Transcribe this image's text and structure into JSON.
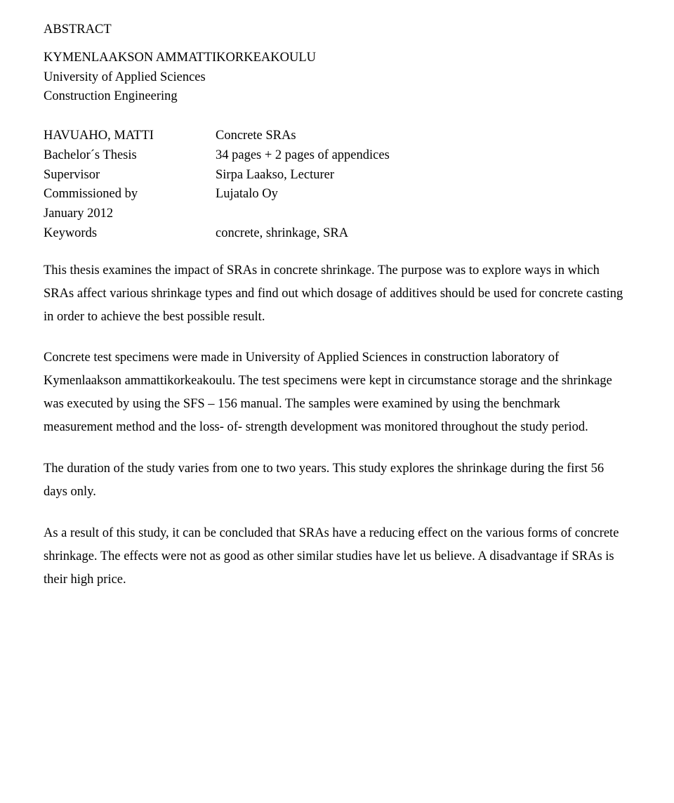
{
  "heading": "ABSTRACT",
  "institution": {
    "line1": "KYMENLAAKSON AMMATTIKORKEAKOULU",
    "line2": "University of Applied Sciences",
    "line3": "Construction Engineering"
  },
  "meta": {
    "author": {
      "label": "HAVUAHO, MATTI",
      "value": "Concrete SRAs"
    },
    "thesis": {
      "label": "Bachelor´s Thesis",
      "value": "34 pages + 2 pages of appendices"
    },
    "supervisor": {
      "label": "Supervisor",
      "value": "Sirpa Laakso, Lecturer"
    },
    "commissioned": {
      "label": "Commissioned by",
      "value": "Lujatalo  Oy"
    },
    "date": {
      "label": "January 2012",
      "value": ""
    },
    "keywords": {
      "label": "Keywords",
      "value": "concrete, shrinkage, SRA"
    }
  },
  "paragraphs": {
    "p1": "This thesis examines the impact of SRAs in concrete shrinkage. The purpose was to explore ways in which SRAs affect various shrinkage types and find out which dosage of additives should be used for concrete casting in order to achieve the best possible result.",
    "p2": "Concrete test specimens were made in University of Applied Sciences in construction laboratory of Kymenlaakson ammattikorkeakoulu. The test specimens were kept in circumstance storage and the shrinkage was executed by using the SFS – 156 manual. The samples were examined by using the benchmark measurement method and the loss- of- strength development was monitored throughout the study period.",
    "p3": "The duration of the study varies from one to two years. This study explores the shrinkage during the first 56 days only.",
    "p4": "As a result of this study, it can be concluded that SRAs have a reducing effect on the various forms of concrete shrinkage. The effects were not as good as other similar studies have let us believe. A disadvantage if SRAs is their high price."
  }
}
